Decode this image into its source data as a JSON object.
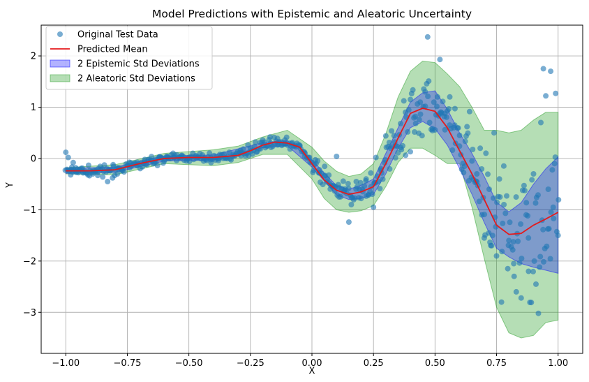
{
  "chart_data": {
    "type": "scatter",
    "title": "Model Predictions with Epistemic and Aleatoric Uncertainty",
    "xlabel": "X",
    "ylabel": "Y",
    "xlim": [
      -1.1,
      1.1
    ],
    "ylim": [
      -3.8,
      2.6
    ],
    "x_ticks": [
      -1.0,
      -0.75,
      -0.5,
      -0.25,
      0.0,
      0.25,
      0.5,
      0.75,
      1.0
    ],
    "x_tick_labels": [
      "−1.00",
      "−0.75",
      "−0.50",
      "−0.25",
      "0.00",
      "0.25",
      "0.50",
      "0.75",
      "1.00"
    ],
    "y_ticks": [
      -3,
      -2,
      -1,
      0,
      1,
      2
    ],
    "y_tick_labels": [
      "−3",
      "−2",
      "−1",
      "0",
      "1",
      "2"
    ],
    "grid": true,
    "legend_position": "top-left",
    "colors": {
      "scatter": "#1f77b4",
      "mean": "#e41a1c",
      "epistemic": "#0000ff",
      "aleatoric": "#2ca02c"
    },
    "series": [
      {
        "name": "Original Test Data",
        "kind": "scatter",
        "points": [
          [
            -1.0,
            0.12
          ],
          [
            -0.99,
            0.02
          ],
          [
            -0.98,
            -0.32
          ],
          [
            -0.97,
            -0.08
          ],
          [
            -0.96,
            -0.18
          ],
          [
            -0.95,
            -0.25
          ],
          [
            -0.93,
            -0.28
          ],
          [
            -0.91,
            -0.32
          ],
          [
            -0.89,
            -0.3
          ],
          [
            -0.87,
            -0.33
          ],
          [
            -0.85,
            -0.36
          ],
          [
            -0.83,
            -0.45
          ],
          [
            -0.81,
            -0.38
          ],
          [
            -0.79,
            -0.3
          ],
          [
            -0.77,
            -0.24
          ],
          [
            -0.74,
            -0.18
          ],
          [
            -0.71,
            -0.14
          ],
          [
            -0.68,
            -0.06
          ],
          [
            -0.65,
            -0.04
          ],
          [
            -0.62,
            0.03
          ],
          [
            -0.59,
            0.04
          ],
          [
            -0.56,
            0.02
          ],
          [
            -0.53,
            0.05
          ],
          [
            -0.5,
            0.02
          ],
          [
            -0.47,
            0.01
          ],
          [
            -0.44,
            -0.05
          ],
          [
            -0.41,
            -0.08
          ],
          [
            -0.38,
            -0.04
          ],
          [
            -0.35,
            0.01
          ],
          [
            -0.32,
            0.08
          ],
          [
            -0.29,
            0.16
          ],
          [
            -0.26,
            0.26
          ],
          [
            -0.23,
            0.32
          ],
          [
            -0.2,
            0.36
          ],
          [
            -0.17,
            0.42
          ],
          [
            -0.14,
            0.39
          ],
          [
            -0.11,
            0.36
          ],
          [
            -0.08,
            0.31
          ],
          [
            -0.05,
            0.24
          ],
          [
            -0.03,
            0.12
          ],
          [
            -0.01,
            0.02
          ],
          [
            0.01,
            -0.12
          ],
          [
            0.03,
            -0.22
          ],
          [
            0.05,
            -0.34
          ],
          [
            0.07,
            -0.48
          ],
          [
            0.09,
            -0.55
          ],
          [
            0.1,
            0.04
          ],
          [
            0.11,
            -0.75
          ],
          [
            0.13,
            -0.62
          ],
          [
            0.15,
            -1.24
          ],
          [
            0.16,
            -0.9
          ],
          [
            0.18,
            -0.45
          ],
          [
            0.2,
            -0.78
          ],
          [
            0.22,
            -0.4
          ],
          [
            0.24,
            -0.55
          ],
          [
            0.25,
            -0.95
          ],
          [
            0.26,
            0.02
          ],
          [
            0.28,
            -0.2
          ],
          [
            0.3,
            0.44
          ],
          [
            0.32,
            0.2
          ],
          [
            0.34,
            0.25
          ],
          [
            0.36,
            0.68
          ],
          [
            0.38,
            0.9
          ],
          [
            0.4,
            1.15
          ],
          [
            0.42,
            0.82
          ],
          [
            0.44,
            1.1
          ],
          [
            0.46,
            1.3
          ],
          [
            0.47,
            2.37
          ],
          [
            0.49,
            0.58
          ],
          [
            0.51,
            1.2
          ],
          [
            0.52,
            1.93
          ],
          [
            0.54,
            0.88
          ],
          [
            0.56,
            1.2
          ],
          [
            0.58,
            0.65
          ],
          [
            0.6,
            0.45
          ],
          [
            0.62,
            -0.15
          ],
          [
            0.63,
            0.62
          ],
          [
            0.65,
            -0.05
          ],
          [
            0.67,
            -0.3
          ],
          [
            0.69,
            -1.1
          ],
          [
            0.7,
            -1.55
          ],
          [
            0.72,
            -0.6
          ],
          [
            0.73,
            -1.7
          ],
          [
            0.74,
            0.5
          ],
          [
            0.75,
            -1.9
          ],
          [
            0.77,
            -2.8
          ],
          [
            0.78,
            -0.9
          ],
          [
            0.8,
            -1.6
          ],
          [
            0.82,
            -2.05
          ],
          [
            0.83,
            -2.6
          ],
          [
            0.85,
            -2.72
          ],
          [
            0.87,
            -1.1
          ],
          [
            0.88,
            -2.2
          ],
          [
            0.9,
            -0.3
          ],
          [
            0.91,
            -2.45
          ],
          [
            0.92,
            -3.02
          ],
          [
            0.93,
            0.7
          ],
          [
            0.94,
            1.75
          ],
          [
            0.95,
            1.22
          ],
          [
            0.96,
            -0.6
          ],
          [
            0.97,
            1.7
          ],
          [
            0.98,
            -0.95
          ],
          [
            0.99,
            1.27
          ],
          [
            1.0,
            -1.5
          ]
        ]
      },
      {
        "name": "Predicted Mean",
        "kind": "line",
        "x": [
          -1.0,
          -0.9,
          -0.8,
          -0.7,
          -0.6,
          -0.5,
          -0.4,
          -0.3,
          -0.25,
          -0.2,
          -0.15,
          -0.1,
          -0.05,
          0.0,
          0.05,
          0.1,
          0.15,
          0.2,
          0.25,
          0.3,
          0.35,
          0.4,
          0.45,
          0.5,
          0.55,
          0.6,
          0.65,
          0.7,
          0.75,
          0.8,
          0.85,
          0.9,
          0.95,
          1.0
        ],
        "y": [
          -0.24,
          -0.24,
          -0.22,
          -0.1,
          0.0,
          0.02,
          0.02,
          0.06,
          0.15,
          0.26,
          0.32,
          0.3,
          0.22,
          -0.1,
          -0.42,
          -0.62,
          -0.7,
          -0.65,
          -0.55,
          -0.1,
          0.4,
          0.88,
          0.98,
          0.92,
          0.6,
          0.15,
          -0.3,
          -0.8,
          -1.3,
          -1.48,
          -1.46,
          -1.3,
          -1.18,
          -1.05
        ]
      },
      {
        "name": "2 Epistemic Std Deviations",
        "kind": "band",
        "x": [
          -1.0,
          -0.8,
          -0.6,
          -0.4,
          -0.2,
          -0.1,
          0.0,
          0.1,
          0.15,
          0.2,
          0.25,
          0.3,
          0.35,
          0.4,
          0.45,
          0.5,
          0.55,
          0.6,
          0.65,
          0.7,
          0.75,
          0.8,
          0.85,
          0.9,
          0.95,
          1.0
        ],
        "lower": [
          -0.29,
          -0.27,
          -0.05,
          -0.03,
          0.21,
          0.25,
          -0.17,
          -0.71,
          -0.8,
          -0.78,
          -0.7,
          -0.3,
          0.2,
          0.6,
          0.72,
          0.58,
          0.26,
          -0.2,
          -0.7,
          -1.25,
          -1.75,
          -1.92,
          -2.05,
          -2.12,
          -2.18,
          -2.24
        ],
        "upper": [
          -0.19,
          -0.17,
          0.05,
          0.07,
          0.31,
          0.35,
          -0.03,
          -0.53,
          -0.6,
          -0.52,
          -0.4,
          0.1,
          0.6,
          1.1,
          1.28,
          1.32,
          0.96,
          0.5,
          0.1,
          -0.35,
          -0.85,
          -1.04,
          -0.86,
          -0.5,
          -0.2,
          0.03
        ]
      },
      {
        "name": "2 Aleatoric Std Deviations",
        "kind": "band",
        "x": [
          -1.0,
          -0.8,
          -0.6,
          -0.4,
          -0.3,
          -0.2,
          -0.1,
          0.0,
          0.05,
          0.1,
          0.15,
          0.2,
          0.25,
          0.3,
          0.35,
          0.4,
          0.45,
          0.5,
          0.55,
          0.6,
          0.65,
          0.7,
          0.75,
          0.8,
          0.85,
          0.9,
          0.95,
          1.0
        ],
        "lower": [
          -0.3,
          -0.32,
          -0.1,
          -0.14,
          -0.08,
          0.08,
          0.08,
          -0.4,
          -0.78,
          -1.0,
          -1.05,
          -1.02,
          -0.92,
          -0.55,
          -0.08,
          0.2,
          0.2,
          0.06,
          -0.1,
          -0.1,
          -0.95,
          -1.95,
          -2.9,
          -3.4,
          -3.5,
          -3.45,
          -3.2,
          -3.15
        ],
        "upper": [
          -0.18,
          -0.12,
          0.1,
          0.17,
          0.24,
          0.42,
          0.55,
          0.22,
          -0.05,
          -0.25,
          -0.35,
          -0.3,
          -0.1,
          0.48,
          1.2,
          1.7,
          1.9,
          1.87,
          1.65,
          1.4,
          1.0,
          0.55,
          0.55,
          0.5,
          0.55,
          0.75,
          0.9,
          0.9
        ]
      }
    ]
  }
}
